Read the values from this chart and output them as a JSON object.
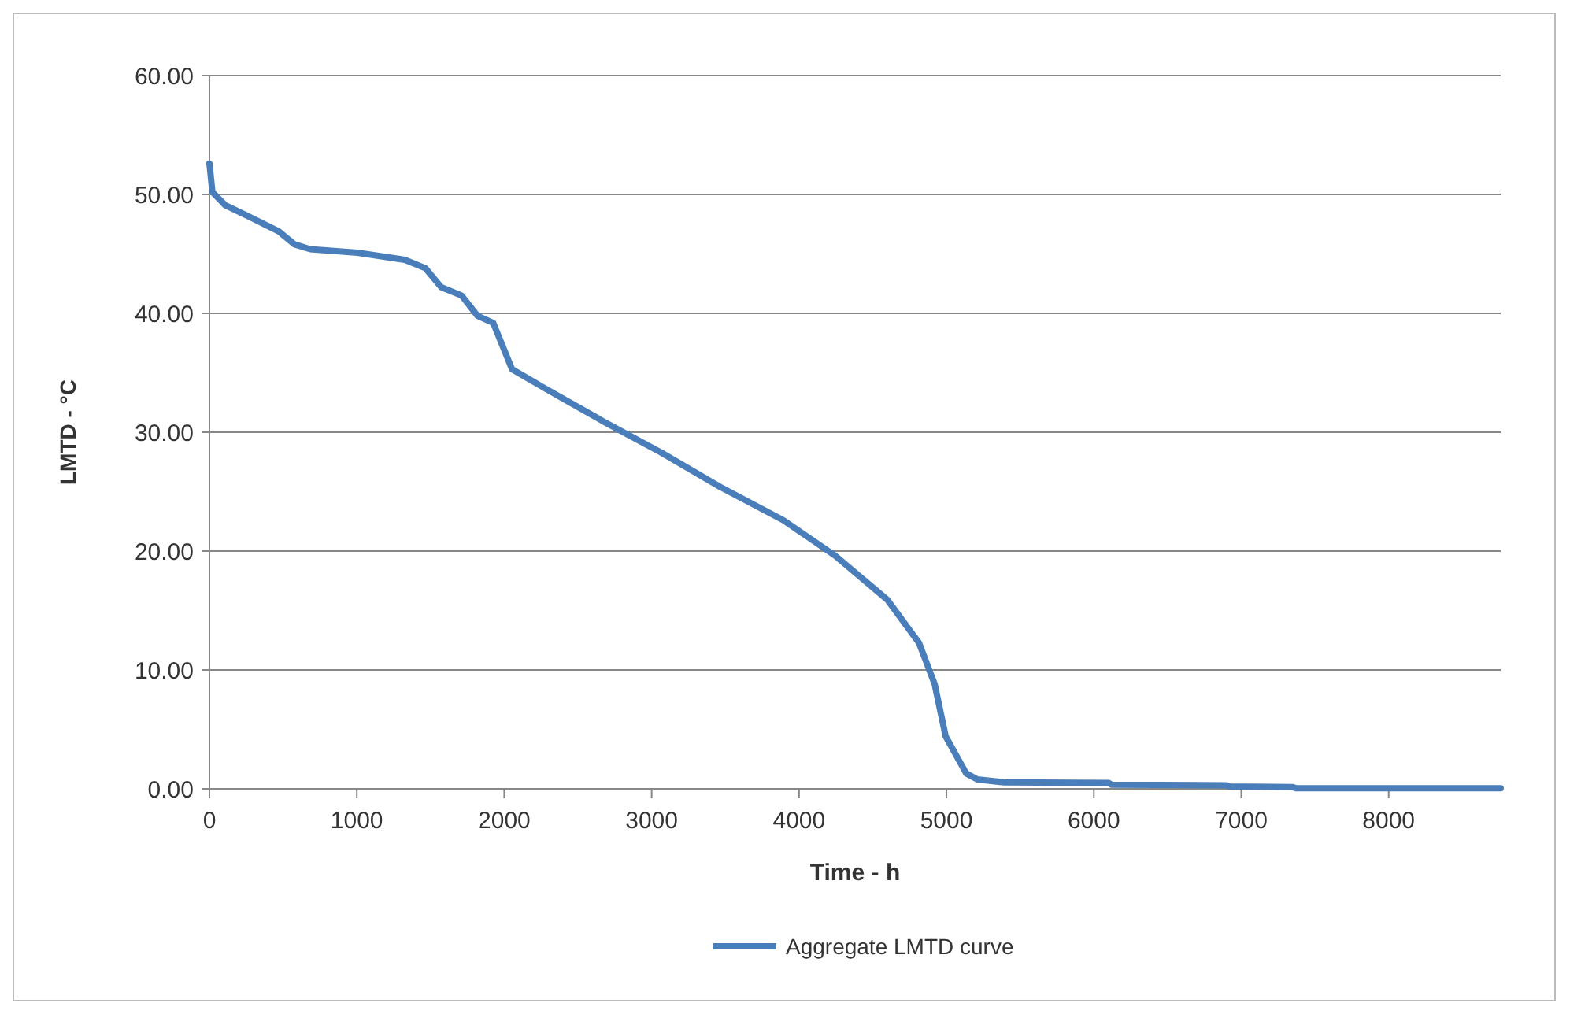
{
  "chart_data": {
    "type": "line",
    "xlabel": "Time - h",
    "ylabel": "LMTD - °C",
    "xlim": [
      0,
      8760
    ],
    "xticks": [
      0,
      1000,
      2000,
      3000,
      4000,
      5000,
      6000,
      7000,
      8000
    ],
    "ylim": [
      0,
      60
    ],
    "yticks": [
      {
        "value": 0,
        "label": "0.00"
      },
      {
        "value": 10,
        "label": "10.00"
      },
      {
        "value": 20,
        "label": "20.00"
      },
      {
        "value": 30,
        "label": "30.00"
      },
      {
        "value": 40,
        "label": "40.00"
      },
      {
        "value": 50,
        "label": "50.00"
      },
      {
        "value": 60,
        "label": "60.00"
      }
    ],
    "grid": "y",
    "legend": "bottom",
    "marker": "none",
    "line_style": "solid",
    "series": [
      {
        "name": "Aggregate LMTD curve",
        "color": "#4a7ebb",
        "x": [
          0,
          20,
          107,
          257,
          470,
          577,
          684,
          1005,
          1326,
          1465,
          1572,
          1711,
          1818,
          1925,
          2053,
          2289,
          2674,
          3064,
          3465,
          3893,
          4246,
          4599,
          4813,
          4920,
          4995,
          5134,
          5209,
          5390,
          6100,
          6120,
          6900,
          6920,
          7350,
          7370,
          8760
        ],
        "values": [
          52.6,
          50.2,
          49.1,
          48.2,
          46.9,
          45.8,
          45.4,
          45.1,
          44.5,
          43.8,
          42.2,
          41.5,
          39.8,
          39.2,
          35.3,
          33.6,
          30.9,
          28.3,
          25.4,
          22.6,
          19.6,
          15.9,
          12.3,
          8.8,
          4.4,
          1.3,
          0.8,
          0.55,
          0.5,
          0.35,
          0.3,
          0.2,
          0.15,
          0.05,
          0.05
        ]
      }
    ]
  }
}
